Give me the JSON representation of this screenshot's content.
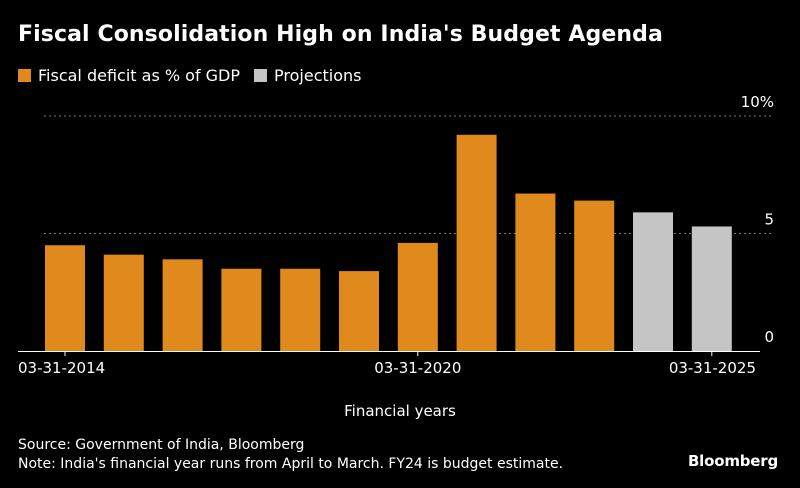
{
  "title": "Fiscal Consolidation High on India's Budget Agenda",
  "legend": [
    {
      "label": "Fiscal deficit as % of GDP",
      "color": "#e08a1e"
    },
    {
      "label": "Projections",
      "color": "#c5c5c5"
    }
  ],
  "source": "Source: Government of India, Bloomberg",
  "note": "Note: India's financial year runs from April to March. FY24 is budget estimate.",
  "brand": "Bloomberg",
  "colors": {
    "actual": "#e08a1e",
    "projection": "#c5c5c5",
    "grid": "#7a7a7a",
    "background": "#000000"
  },
  "chart_data": {
    "type": "bar",
    "title": "Fiscal Consolidation High on India's Budget Agenda",
    "xlabel": "Financial years",
    "ylabel": "",
    "ylim": [
      0,
      10
    ],
    "y_ticks": [
      {
        "value": 10,
        "label": "10%"
      },
      {
        "value": 5,
        "label": "5"
      },
      {
        "value": 0,
        "label": "0"
      }
    ],
    "gridlines": [
      10,
      5
    ],
    "x_tick_labels": [
      {
        "index": 0,
        "label": "03-31-2014"
      },
      {
        "index": 6,
        "label": "03-31-2020"
      },
      {
        "index": 11,
        "label": "03-31-2025"
      }
    ],
    "series": [
      {
        "name": "Fiscal deficit as % of GDP",
        "color": "#e08a1e",
        "values": [
          4.5,
          4.1,
          3.9,
          3.5,
          3.5,
          3.4,
          4.6,
          9.2,
          6.7,
          6.4,
          null,
          null
        ]
      },
      {
        "name": "Projections",
        "color": "#c5c5c5",
        "values": [
          null,
          null,
          null,
          null,
          null,
          null,
          null,
          null,
          null,
          null,
          5.9,
          5.3
        ]
      }
    ]
  }
}
